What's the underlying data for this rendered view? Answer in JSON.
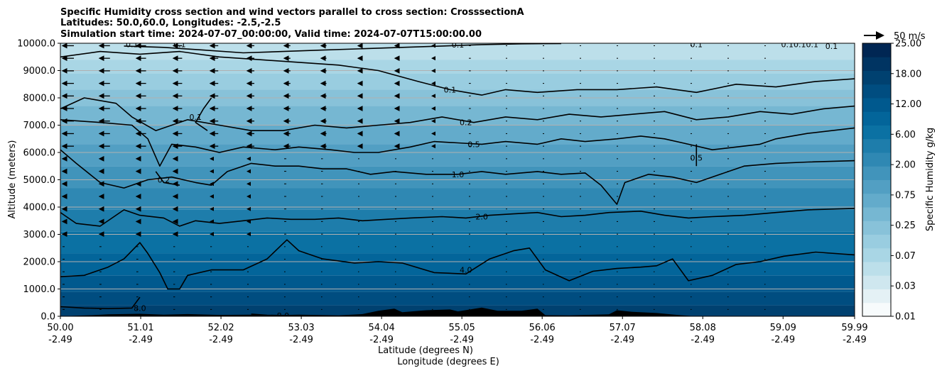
{
  "chart_data": {
    "type": "contourf-cross-section",
    "title_lines": [
      "Specific Humidity cross section and wind vectors parallel to cross section: CrosssectionA",
      "Latitudes: 50.0,60.0, Longitudes: -2.5,-2.5",
      "Simulation start time: 2024-07-07_00:00:00, Valid time: 2024-07-07T15:00:00.00"
    ],
    "xlabel_lat": "Latitude (degrees N)",
    "xlabel_lon": "Longitude (degrees E)",
    "ylabel": "Altitude (meters)",
    "x_range": [
      50.0,
      59.99
    ],
    "ylim": [
      0,
      10000
    ],
    "x_ticks": [
      {
        "lat": "50.00",
        "lon": "-2.49",
        "pos": 50.0
      },
      {
        "lat": "51.01",
        "lon": "-2.49",
        "pos": 51.01
      },
      {
        "lat": "52.02",
        "lon": "-2.49",
        "pos": 52.02
      },
      {
        "lat": "53.03",
        "lon": "-2.49",
        "pos": 53.03
      },
      {
        "lat": "54.04",
        "lon": "-2.49",
        "pos": 54.04
      },
      {
        "lat": "55.05",
        "lon": "-2.49",
        "pos": 55.05
      },
      {
        "lat": "56.06",
        "lon": "-2.49",
        "pos": 56.06
      },
      {
        "lat": "57.07",
        "lon": "-2.49",
        "pos": 57.07
      },
      {
        "lat": "58.08",
        "lon": "-2.49",
        "pos": 58.08
      },
      {
        "lat": "59.09",
        "lon": "-2.49",
        "pos": 59.09
      },
      {
        "lat": "59.99",
        "lon": "-2.49",
        "pos": 59.99
      }
    ],
    "y_ticks": [
      {
        "label": "0.0",
        "value": 0
      },
      {
        "label": "1000.0",
        "value": 1000
      },
      {
        "label": "2000.0",
        "value": 2000
      },
      {
        "label": "3000.0",
        "value": 3000
      },
      {
        "label": "4000.0",
        "value": 4000
      },
      {
        "label": "5000.0",
        "value": 5000
      },
      {
        "label": "6000.0",
        "value": 6000
      },
      {
        "label": "7000.0",
        "value": 7000
      },
      {
        "label": "8000.0",
        "value": 8000
      },
      {
        "label": "9000.0",
        "value": 9000
      },
      {
        "label": "10000.0",
        "value": 10000
      }
    ],
    "grid": "horizontal",
    "colorbar": {
      "label": "Specific Humidity g/kg",
      "levels": [
        "0.01",
        "0.02",
        "0.03",
        "0.05",
        "0.07",
        "0.1",
        "0.2",
        "0.25",
        "0.3",
        "0.5",
        "0.75",
        "1.0",
        "2.00",
        "3.0",
        "6.00",
        "8.0",
        "12.00",
        "15.0",
        "18.00",
        "20.0",
        "25.00"
      ],
      "tick_labels": [
        "0.01",
        "0.03",
        "0.07",
        "0.25",
        "0.75",
        "2.00",
        "6.00",
        "12.00",
        "18.00",
        "25.00"
      ],
      "colors": [
        "#f7fbfc",
        "#e4f1f5",
        "#cfe7ef",
        "#bcdfea",
        "#a9d6e5",
        "#99cde0",
        "#88c2d9",
        "#76b7d2",
        "#63abcb",
        "#529fc3",
        "#4194bb",
        "#2f88b3",
        "#1e7dab",
        "#0b71a3",
        "#03659a",
        "#00598e",
        "#004d80",
        "#004170",
        "#003462",
        "#002653"
      ]
    },
    "quiver_key": {
      "label": "50 m/s",
      "speed": 50
    },
    "contours": [
      {
        "level": "8.0",
        "label_at": [
          51.0,
          300
        ],
        "points": [
          [
            50.0,
            350
          ],
          [
            50.3,
            300
          ],
          [
            50.6,
            280
          ],
          [
            50.9,
            300
          ],
          [
            51.0,
            700
          ]
        ]
      },
      {
        "level": "8.0",
        "label_at": [
          52.8,
          30
        ],
        "points": [
          [
            52.4,
            80
          ],
          [
            52.6,
            40
          ],
          [
            52.9,
            20
          ]
        ]
      },
      {
        "level": "4.0",
        "label_at": [
          55.1,
          1700
        ],
        "points": [
          [
            50.0,
            1450
          ],
          [
            50.3,
            1500
          ],
          [
            50.6,
            1800
          ],
          [
            50.8,
            2100
          ],
          [
            51.0,
            2700
          ],
          [
            51.1,
            2300
          ],
          [
            51.25,
            1600
          ],
          [
            51.35,
            1000
          ],
          [
            51.5,
            1000
          ],
          [
            51.6,
            1500
          ],
          [
            51.9,
            1700
          ],
          [
            52.3,
            1700
          ],
          [
            52.6,
            2100
          ],
          [
            52.85,
            2800
          ],
          [
            53.0,
            2400
          ],
          [
            53.3,
            2100
          ],
          [
            53.7,
            1950
          ],
          [
            54.0,
            2000
          ],
          [
            54.3,
            1950
          ],
          [
            54.7,
            1600
          ],
          [
            55.1,
            1550
          ],
          [
            55.4,
            2100
          ],
          [
            55.7,
            2400
          ],
          [
            55.9,
            2500
          ],
          [
            56.1,
            1700
          ],
          [
            56.4,
            1300
          ],
          [
            56.7,
            1650
          ],
          [
            57.0,
            1750
          ],
          [
            57.3,
            1800
          ],
          [
            57.5,
            1850
          ],
          [
            57.7,
            2100
          ],
          [
            57.9,
            1300
          ],
          [
            58.2,
            1500
          ],
          [
            58.5,
            1900
          ],
          [
            58.8,
            2000
          ],
          [
            59.1,
            2200
          ],
          [
            59.5,
            2350
          ],
          [
            59.99,
            2250
          ]
        ]
      },
      {
        "level": "2.0",
        "label_at": [
          55.3,
          3650
        ],
        "points": [
          [
            50.0,
            3800
          ],
          [
            50.2,
            3400
          ],
          [
            50.5,
            3300
          ],
          [
            50.8,
            3900
          ],
          [
            51.0,
            3700
          ],
          [
            51.3,
            3600
          ],
          [
            51.5,
            3300
          ],
          [
            51.7,
            3500
          ],
          [
            52.0,
            3400
          ],
          [
            52.3,
            3500
          ],
          [
            52.6,
            3600
          ],
          [
            52.9,
            3550
          ],
          [
            53.2,
            3550
          ],
          [
            53.5,
            3600
          ],
          [
            53.8,
            3500
          ],
          [
            54.1,
            3550
          ],
          [
            54.4,
            3600
          ],
          [
            54.8,
            3650
          ],
          [
            55.1,
            3600
          ],
          [
            55.4,
            3700
          ],
          [
            55.7,
            3750
          ],
          [
            56.0,
            3800
          ],
          [
            56.3,
            3650
          ],
          [
            56.6,
            3700
          ],
          [
            56.9,
            3800
          ],
          [
            57.3,
            3850
          ],
          [
            57.6,
            3700
          ],
          [
            57.9,
            3600
          ],
          [
            58.2,
            3650
          ],
          [
            58.6,
            3700
          ],
          [
            59.0,
            3800
          ],
          [
            59.4,
            3900
          ],
          [
            59.99,
            3950
          ]
        ]
      },
      {
        "level": "1.0",
        "label_at": [
          55.0,
          5200
        ],
        "points": [
          [
            50.0,
            6100
          ],
          [
            50.2,
            5600
          ],
          [
            50.5,
            4900
          ],
          [
            50.8,
            4700
          ],
          [
            51.1,
            5000
          ],
          [
            51.4,
            5100
          ],
          [
            51.7,
            4900
          ],
          [
            51.9,
            4800
          ],
          [
            52.1,
            5300
          ],
          [
            52.4,
            5600
          ],
          [
            52.7,
            5500
          ],
          [
            53.0,
            5500
          ],
          [
            53.3,
            5400
          ],
          [
            53.6,
            5400
          ],
          [
            53.9,
            5200
          ],
          [
            54.2,
            5300
          ],
          [
            54.6,
            5200
          ],
          [
            55.0,
            5200
          ],
          [
            55.3,
            5300
          ],
          [
            55.6,
            5200
          ],
          [
            56.0,
            5300
          ],
          [
            56.3,
            5200
          ],
          [
            56.6,
            5250
          ],
          [
            56.8,
            4800
          ],
          [
            57.0,
            4100
          ],
          [
            57.1,
            4900
          ],
          [
            57.4,
            5200
          ],
          [
            57.7,
            5100
          ],
          [
            58.0,
            4900
          ],
          [
            58.3,
            5200
          ],
          [
            58.6,
            5500
          ],
          [
            59.0,
            5600
          ],
          [
            59.4,
            5650
          ],
          [
            59.99,
            5700
          ]
        ]
      },
      {
        "level": "0.5",
        "label_at": [
          55.2,
          6300
        ],
        "points": [
          [
            50.0,
            7200
          ],
          [
            50.5,
            7100
          ],
          [
            50.9,
            7000
          ],
          [
            51.1,
            6500
          ],
          [
            51.25,
            5500
          ],
          [
            51.4,
            6300
          ],
          [
            51.7,
            6200
          ],
          [
            52.0,
            6000
          ],
          [
            52.3,
            6200
          ],
          [
            52.7,
            6100
          ],
          [
            53.0,
            6200
          ],
          [
            53.4,
            6100
          ],
          [
            53.7,
            6000
          ],
          [
            54.0,
            6000
          ],
          [
            54.4,
            6200
          ],
          [
            54.7,
            6400
          ],
          [
            55.0,
            6350
          ],
          [
            55.3,
            6300
          ],
          [
            55.6,
            6400
          ],
          [
            56.0,
            6300
          ],
          [
            56.3,
            6500
          ],
          [
            56.6,
            6400
          ],
          [
            57.0,
            6500
          ],
          [
            57.3,
            6600
          ],
          [
            57.6,
            6500
          ],
          [
            57.9,
            6300
          ],
          [
            58.2,
            6100
          ],
          [
            58.5,
            6200
          ],
          [
            58.8,
            6300
          ],
          [
            59.0,
            6500
          ],
          [
            59.4,
            6700
          ],
          [
            59.99,
            6900
          ]
        ]
      },
      {
        "level": "0.2",
        "label_at": [
          55.1,
          7100
        ],
        "points": [
          [
            50.0,
            7600
          ],
          [
            50.3,
            8000
          ],
          [
            50.7,
            7800
          ],
          [
            50.9,
            7300
          ],
          [
            51.2,
            6800
          ],
          [
            51.6,
            7200
          ],
          [
            52.0,
            7000
          ],
          [
            52.4,
            6800
          ],
          [
            52.8,
            6800
          ],
          [
            53.2,
            7000
          ],
          [
            53.6,
            6900
          ],
          [
            54.0,
            7000
          ],
          [
            54.4,
            7100
          ],
          [
            54.8,
            7300
          ],
          [
            55.2,
            7100
          ],
          [
            55.6,
            7300
          ],
          [
            56.0,
            7200
          ],
          [
            56.4,
            7400
          ],
          [
            56.8,
            7300
          ],
          [
            57.2,
            7400
          ],
          [
            57.6,
            7500
          ],
          [
            58.0,
            7200
          ],
          [
            58.4,
            7300
          ],
          [
            58.8,
            7500
          ],
          [
            59.2,
            7400
          ],
          [
            59.6,
            7600
          ],
          [
            59.99,
            7700
          ]
        ]
      },
      {
        "level": "0.1",
        "label_at": [
          54.9,
          8300
        ],
        "points": [
          [
            50.0,
            9500
          ],
          [
            50.5,
            9700
          ],
          [
            51.0,
            9600
          ],
          [
            51.5,
            9700
          ],
          [
            52.0,
            9500
          ],
          [
            52.5,
            9400
          ],
          [
            53.0,
            9300
          ],
          [
            53.5,
            9200
          ],
          [
            54.0,
            9000
          ],
          [
            54.5,
            8600
          ],
          [
            54.9,
            8300
          ],
          [
            55.3,
            8100
          ],
          [
            55.6,
            8300
          ],
          [
            56.0,
            8200
          ],
          [
            56.5,
            8300
          ],
          [
            57.0,
            8300
          ],
          [
            57.5,
            8400
          ],
          [
            58.0,
            8200
          ],
          [
            58.5,
            8500
          ],
          [
            59.0,
            8400
          ],
          [
            59.5,
            8600
          ],
          [
            59.99,
            8700
          ]
        ]
      },
      {
        "level": "0.1",
        "label_at": [
          55.0,
          9950
        ],
        "points": [
          [
            50.8,
            9900
          ],
          [
            51.3,
            9850
          ],
          [
            51.8,
            9750
          ],
          [
            52.3,
            9650
          ],
          [
            52.8,
            9700
          ],
          [
            53.3,
            9750
          ],
          [
            53.8,
            9800
          ],
          [
            54.3,
            9850
          ],
          [
            54.8,
            9900
          ],
          [
            55.3,
            9950
          ],
          [
            55.8,
            9980
          ],
          [
            56.3,
            9990
          ]
        ]
      },
      {
        "level": "0.1",
        "label_at": [
          51.7,
          7300
        ],
        "points": [
          [
            51.9,
            8000
          ],
          [
            51.8,
            7600
          ],
          [
            51.7,
            7100
          ],
          [
            51.85,
            6800
          ]
        ]
      },
      {
        "level": "0.2",
        "label_at": [
          51.3,
          5000
        ],
        "points": [
          [
            51.2,
            5300
          ],
          [
            51.3,
            4900
          ],
          [
            51.5,
            4800
          ]
        ]
      },
      {
        "level": "0.5",
        "label_at": [
          58.0,
          5800
        ],
        "points": [
          [
            58.0,
            6300
          ],
          [
            58.0,
            5500
          ]
        ]
      }
    ],
    "contour_extra_labels": [
      {
        "text": "0.1",
        "at": [
          50.9,
          9960
        ]
      },
      {
        "text": "0.1",
        "at": [
          51.5,
          9960
        ]
      },
      {
        "text": "0.1",
        "at": [
          58.0,
          9960
        ]
      },
      {
        "text": "0.10.10.1",
        "at": [
          59.3,
          9960
        ]
      },
      {
        "text": "0.1",
        "at": [
          59.7,
          9900
        ]
      }
    ],
    "terrain": [
      [
        50.0,
        0
      ],
      [
        50.4,
        40
      ],
      [
        50.6,
        70
      ],
      [
        51.0,
        90
      ],
      [
        51.3,
        60
      ],
      [
        51.6,
        80
      ],
      [
        52.0,
        50
      ],
      [
        52.4,
        60
      ],
      [
        52.7,
        40
      ],
      [
        53.0,
        60
      ],
      [
        53.5,
        30
      ],
      [
        53.8,
        80
      ],
      [
        54.0,
        200
      ],
      [
        54.2,
        280
      ],
      [
        54.3,
        150
      ],
      [
        54.6,
        220
      ],
      [
        54.9,
        250
      ],
      [
        55.0,
        180
      ],
      [
        55.3,
        320
      ],
      [
        55.5,
        200
      ],
      [
        55.8,
        200
      ],
      [
        56.0,
        280
      ],
      [
        56.1,
        40
      ],
      [
        56.4,
        30
      ],
      [
        56.9,
        70
      ],
      [
        57.0,
        220
      ],
      [
        57.2,
        160
      ],
      [
        57.5,
        120
      ],
      [
        57.8,
        40
      ],
      [
        58.0,
        0
      ],
      [
        59.99,
        0
      ]
    ]
  }
}
